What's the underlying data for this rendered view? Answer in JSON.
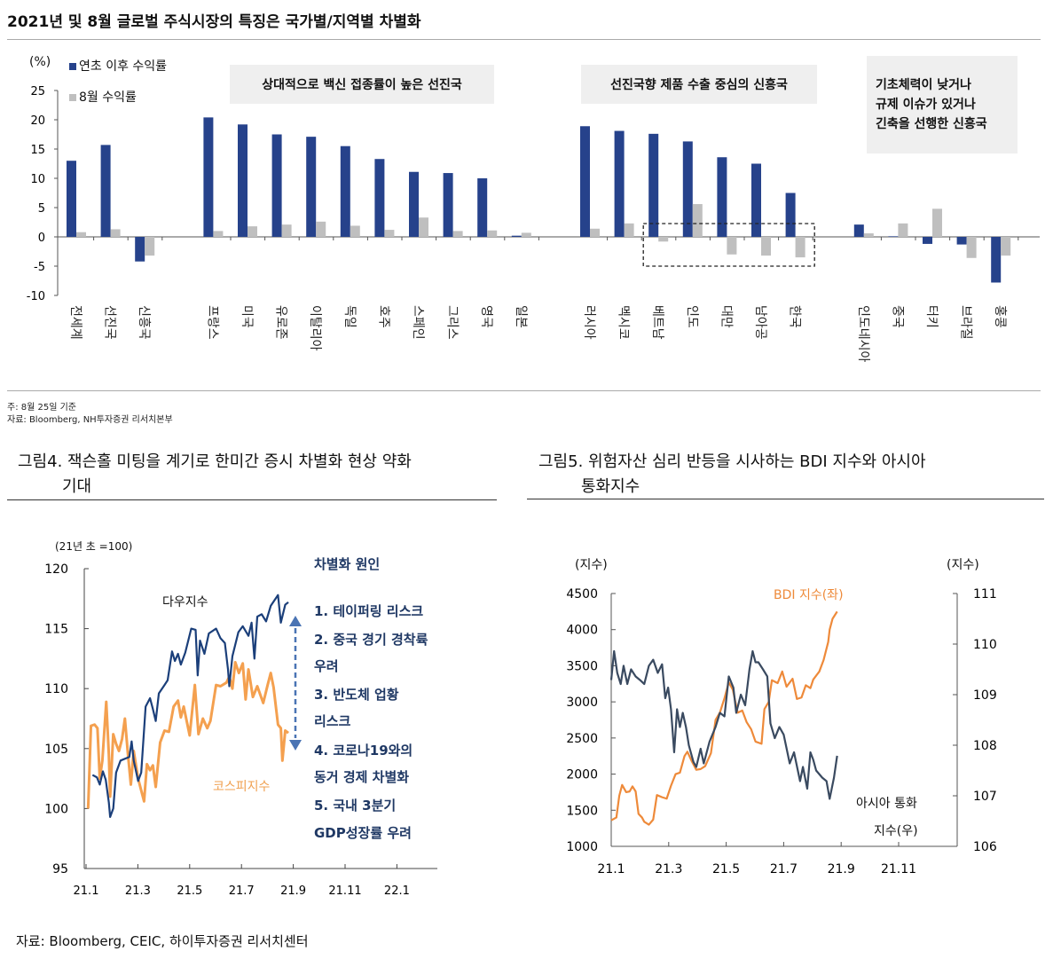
{
  "page_title": "2021년 및 8월 글로벌 주식시장의 특징은 국가별/지역별 차별화",
  "notes": [
    "주: 8월 25일 기준",
    "자료: Bloomberg, NH투자증권 리서치본부"
  ],
  "footer_source": "자료: Bloomberg, CEIC,  하이투자증권  리서치센터",
  "colors": {
    "ytd_blue": "#26428b",
    "aug_gray": "#bfbfbf",
    "dow": "#1b3f7a",
    "kospi": "#f4a04f",
    "bdi": "#ee8a3a",
    "asia_fx": "#3a4a60",
    "cause_text": "#1f3864"
  },
  "chart_data": [
    {
      "type": "bar",
      "ylabel": "(%)",
      "ylim": [
        -10,
        25
      ],
      "yticks": [
        25,
        20,
        15,
        10,
        5,
        0,
        -5,
        -10
      ],
      "legend": [
        "연초 이후 수익률",
        "8월 수익률"
      ],
      "legend_position": "top-left",
      "annotations": [
        "상대적으로 백신 접종률이 높은 선진국",
        "선진국향 제품 수출 중심의 신흥국",
        [
          "기초체력이 낮거나",
          "규제 이슈가 있거나",
          "긴축을 선행한 신흥국"
        ]
      ],
      "highlight_box": [
        "베트남",
        "인도",
        "대만",
        "남아공",
        "한국"
      ],
      "groups": [
        {
          "categories": [
            "전세계",
            "선진국",
            "신흥국"
          ],
          "series": [
            {
              "name": "연초 이후 수익률",
              "values": [
                13.0,
                15.7,
                -4.2
              ]
            },
            {
              "name": "8월 수익률",
              "values": [
                0.8,
                1.3,
                -3.2
              ]
            }
          ]
        },
        {
          "categories": [
            "프랑스",
            "미국",
            "유로존",
            "이탈리아",
            "독일",
            "호주",
            "스페인",
            "그리스",
            "영국",
            "일본"
          ],
          "series": [
            {
              "name": "연초 이후 수익률",
              "values": [
                20.4,
                19.2,
                17.5,
                17.1,
                15.5,
                13.3,
                11.1,
                10.9,
                10.0,
                0.2
              ]
            },
            {
              "name": "8월 수익률",
              "values": [
                1.0,
                1.8,
                2.1,
                2.6,
                1.9,
                1.2,
                3.3,
                1.0,
                1.1,
                0.7
              ]
            }
          ]
        },
        {
          "categories": [
            "러시아",
            "멕시코",
            "베트남",
            "인도",
            "대만",
            "남아공",
            "한국"
          ],
          "series": [
            {
              "name": "연초 이후 수익률",
              "values": [
                18.9,
                18.1,
                17.6,
                16.3,
                13.6,
                12.5,
                7.5
              ]
            },
            {
              "name": "8월 수익률",
              "values": [
                1.4,
                2.3,
                -0.8,
                5.6,
                -3.0,
                -3.2,
                -3.5
              ]
            }
          ]
        },
        {
          "categories": [
            "인도네시아",
            "중국",
            "터키",
            "브라질",
            "홍콩"
          ],
          "series": [
            {
              "name": "연초 이후 수익률",
              "values": [
                2.1,
                0.1,
                -1.2,
                -1.3,
                -7.8
              ]
            },
            {
              "name": "8월 수익률",
              "values": [
                0.6,
                2.3,
                4.8,
                -3.6,
                -3.2
              ]
            }
          ]
        }
      ]
    },
    {
      "type": "line",
      "title": [
        "그림4.  잭슨홀 미팅을 계기로 한미간 증시 차별화 현상 약화",
        "기대"
      ],
      "ylabel": "(21년 초 =100)",
      "ylim": [
        95,
        120
      ],
      "yticks": [
        120,
        115,
        110,
        105,
        100,
        95
      ],
      "xticks": [
        "21.1",
        "21.3",
        "21.5",
        "21.7",
        "21.9",
        "21.11",
        "22.1"
      ],
      "xtick_months": [
        1,
        3,
        5,
        7,
        9,
        11,
        13
      ],
      "xlim_months": [
        1,
        14.5
      ],
      "series": [
        {
          "name": "다우지수",
          "x_months": [
            1.25,
            1.42,
            1.53,
            1.65,
            1.76,
            1.88,
            1.93,
            2.05,
            2.16,
            2.33,
            2.67,
            2.76,
            2.84,
            3.01,
            3.13,
            3.3,
            3.47,
            3.58,
            3.69,
            3.81,
            4.03,
            4.15,
            4.32,
            4.43,
            4.55,
            4.66,
            4.83,
            5.06,
            5.23,
            5.31,
            5.4,
            5.57,
            5.74,
            6.02,
            6.19,
            6.36,
            6.48,
            6.53,
            6.65,
            6.88,
            7.05,
            7.27,
            7.39,
            7.5,
            7.61,
            7.78,
            7.95,
            8.13,
            8.41,
            8.52,
            8.69,
            8.81
          ],
          "values": [
            102.8,
            102.6,
            102.0,
            103.1,
            102.4,
            100.5,
            99.3,
            100.0,
            103.0,
            104.0,
            104.3,
            105.6,
            104.0,
            102.3,
            103.0,
            108.5,
            109.2,
            108.3,
            107.3,
            109.6,
            110.3,
            110.7,
            113.1,
            112.3,
            112.9,
            112.0,
            113.0,
            115.0,
            114.9,
            111.1,
            114.0,
            112.9,
            114.6,
            115.0,
            114.2,
            113.8,
            111.6,
            110.2,
            112.7,
            114.7,
            115.2,
            114.4,
            115.5,
            112.5,
            116.0,
            116.2,
            115.6,
            116.9,
            117.8,
            115.5,
            117.0,
            117.2
          ]
        },
        {
          "name": "코스피지수",
          "x_months": [
            1.08,
            1.19,
            1.33,
            1.44,
            1.53,
            1.63,
            1.78,
            1.88,
            1.93,
            2.05,
            2.16,
            2.27,
            2.39,
            2.5,
            2.61,
            2.73,
            2.84,
            3.01,
            3.24,
            3.35,
            3.47,
            3.58,
            3.69,
            3.86,
            4.03,
            4.2,
            4.38,
            4.55,
            4.66,
            4.77,
            5.0,
            5.2,
            5.34,
            5.51,
            5.68,
            5.8,
            5.91,
            6.02,
            6.19,
            6.42,
            6.53,
            6.65,
            6.76,
            6.9,
            7.05,
            7.16,
            7.27,
            7.44,
            7.61,
            7.84,
            8.01,
            8.13,
            8.24,
            8.41,
            8.52,
            8.58,
            8.69,
            8.81
          ],
          "values": [
            100.0,
            106.9,
            107.0,
            106.7,
            102.5,
            104.0,
            108.9,
            104.5,
            101.0,
            106.2,
            105.4,
            104.8,
            105.8,
            107.5,
            104.7,
            102.0,
            104.8,
            102.5,
            100.6,
            103.7,
            103.2,
            103.6,
            101.8,
            105.5,
            106.5,
            106.4,
            108.5,
            109.0,
            107.6,
            108.5,
            106.1,
            110.3,
            106.2,
            107.5,
            106.7,
            107.3,
            108.8,
            110.3,
            110.2,
            110.5,
            111.0,
            110.0,
            112.2,
            111.3,
            112.1,
            109.1,
            111.6,
            109.3,
            110.2,
            108.8,
            110.3,
            111.3,
            110.1,
            107.0,
            106.7,
            104.0,
            106.5,
            106.3
          ]
        }
      ],
      "side_text": {
        "heading": "차별화 원인",
        "lines": [
          "1. 테이퍼링  리스크",
          "2. 중국 경기 경착륙",
          "우려",
          "3. 반도체 업황",
          "리스크",
          "4. 코로나19와의",
          "동거 경제 차별화",
          "5. 국내 3분기",
          "GDP성장률 우려"
        ]
      }
    },
    {
      "type": "line",
      "title": [
        "그림5.  위험자산 심리 반등을 시사하는 BDI 지수와  아시아",
        "통화지수"
      ],
      "ylabel_left": "(지수)",
      "ylabel_right": "(지수)",
      "ylim_left": [
        1000,
        4500
      ],
      "ylim_right": [
        106,
        111
      ],
      "yticks_left": [
        4500,
        4000,
        3500,
        3000,
        2500,
        2000,
        1500,
        1000
      ],
      "yticks_right": [
        111,
        110,
        109,
        108,
        107,
        106
      ],
      "xticks": [
        "21.1",
        "21.3",
        "21.5",
        "21.7",
        "21.9",
        "21.11"
      ],
      "xtick_months": [
        1,
        3,
        5,
        7,
        9,
        11
      ],
      "xlim_months": [
        1,
        13
      ],
      "series": [
        {
          "name": "BDI 지수(좌)",
          "axis": "left",
          "x_months": [
            1.0,
            1.18,
            1.28,
            1.38,
            1.52,
            1.64,
            1.74,
            1.85,
            1.95,
            2.07,
            2.15,
            2.31,
            2.46,
            2.59,
            2.77,
            2.93,
            3.08,
            3.24,
            3.39,
            3.55,
            3.65,
            3.8,
            3.96,
            4.11,
            4.27,
            4.47,
            4.63,
            4.78,
            4.94,
            5.09,
            5.23,
            5.4,
            5.56,
            5.71,
            5.87,
            6.02,
            6.23,
            6.33,
            6.48,
            6.59,
            6.79,
            6.95,
            7.1,
            7.31,
            7.46,
            7.62,
            7.77,
            7.93,
            8.03,
            8.24,
            8.39,
            8.55,
            8.6,
            8.7,
            8.86
          ],
          "values": [
            1360,
            1400,
            1700,
            1850,
            1750,
            1760,
            1830,
            1760,
            1450,
            1400,
            1340,
            1300,
            1370,
            1710,
            1680,
            1660,
            1840,
            2000,
            2020,
            2250,
            2310,
            2180,
            2060,
            2070,
            2110,
            2290,
            2750,
            2850,
            3050,
            3270,
            3170,
            2850,
            2880,
            2720,
            2620,
            2450,
            2420,
            2900,
            3000,
            3300,
            3260,
            3420,
            3210,
            3320,
            3040,
            3060,
            3230,
            3190,
            3310,
            3420,
            3580,
            3830,
            4000,
            4150,
            4250
          ]
        },
        {
          "name": "아시아 통화 지수(우)",
          "axis": "right",
          "x_months": [
            1.0,
            1.1,
            1.21,
            1.33,
            1.43,
            1.56,
            1.69,
            1.85,
            2.0,
            2.15,
            2.31,
            2.46,
            2.62,
            2.77,
            2.88,
            2.98,
            3.08,
            3.19,
            3.29,
            3.39,
            3.49,
            3.6,
            3.7,
            3.86,
            3.96,
            4.11,
            4.22,
            4.42,
            4.63,
            4.78,
            4.94,
            5.09,
            5.25,
            5.35,
            5.51,
            5.66,
            5.81,
            5.92,
            6.02,
            6.12,
            6.28,
            6.43,
            6.54,
            6.69,
            6.85,
            7.0,
            7.21,
            7.36,
            7.57,
            7.67,
            7.82,
            7.93,
            8.03,
            8.13,
            8.34,
            8.49,
            8.6,
            8.75,
            8.86
          ],
          "values": [
            109.29,
            109.86,
            109.43,
            109.21,
            109.57,
            109.21,
            109.5,
            109.36,
            109.29,
            109.21,
            109.57,
            109.69,
            109.43,
            109.6,
            108.93,
            109.14,
            108.71,
            107.86,
            108.71,
            108.36,
            108.64,
            108.36,
            108.0,
            107.67,
            107.57,
            107.93,
            107.64,
            108.07,
            108.36,
            108.64,
            108.57,
            109.36,
            109.14,
            108.64,
            109.0,
            108.79,
            109.5,
            109.86,
            109.64,
            109.64,
            109.5,
            109.36,
            108.43,
            108.14,
            108.36,
            108.21,
            107.64,
            107.86,
            107.29,
            107.57,
            107.14,
            107.86,
            107.71,
            107.5,
            107.36,
            107.29,
            106.94,
            107.36,
            107.79
          ]
        }
      ],
      "series_labels": {
        "bdi": "BDI 지수(좌)",
        "asia_line1": "아시아 통화",
        "asia_line2": "지수(우)"
      }
    }
  ]
}
